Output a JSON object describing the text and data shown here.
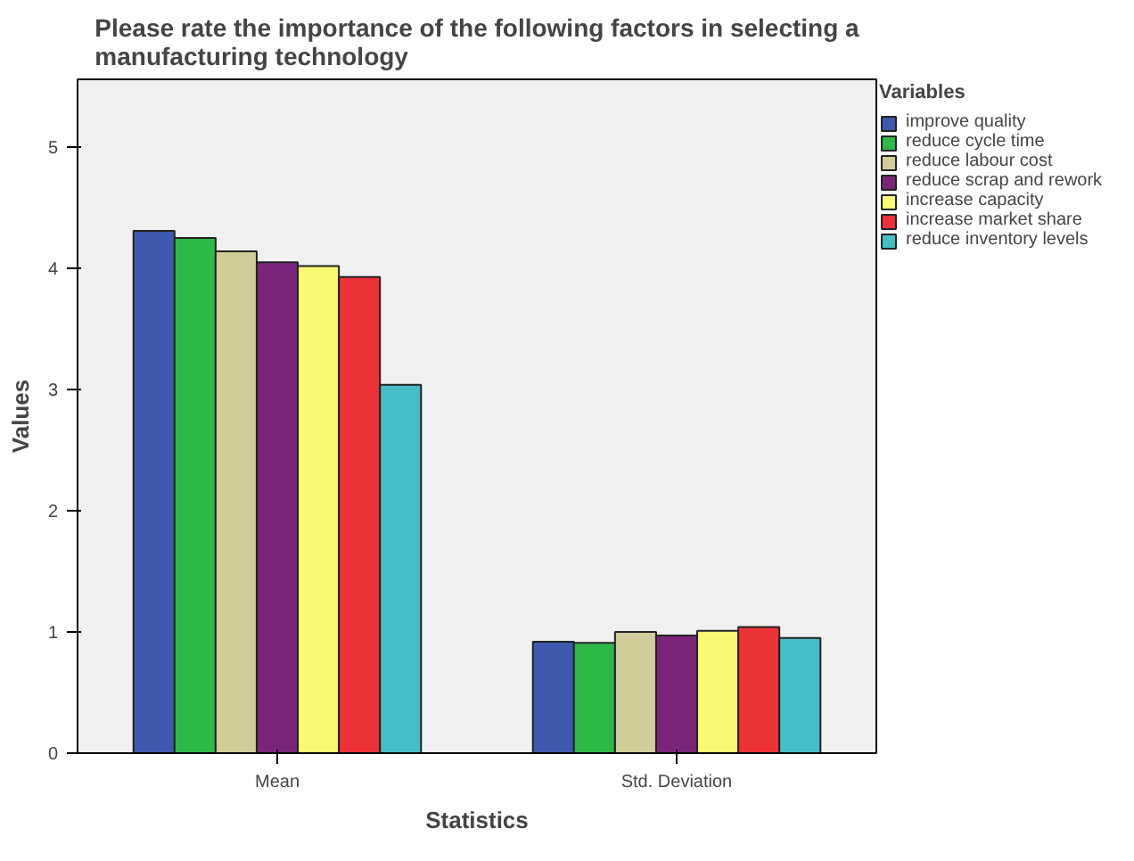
{
  "chart_data": {
    "type": "bar",
    "title": "Please rate the importance of the following factors in selecting a\nmanufacturing technology",
    "xlabel": "Statistics",
    "ylabel": "Values",
    "legend_title": "Variables",
    "categories": [
      "Mean",
      "Std. Deviation"
    ],
    "series": [
      {
        "name": "improve quality",
        "color": "#3e58ac",
        "values": [
          4.31,
          0.92
        ]
      },
      {
        "name": "reduce cycle time",
        "color": "#2eb848",
        "values": [
          4.25,
          0.91
        ]
      },
      {
        "name": "reduce labour cost",
        "color": "#d2cc9a",
        "values": [
          4.14,
          1.0
        ]
      },
      {
        "name": "reduce scrap and rework",
        "color": "#79267a",
        "values": [
          4.05,
          0.97
        ]
      },
      {
        "name": "increase capacity",
        "color": "#fbf873",
        "values": [
          4.02,
          1.01
        ]
      },
      {
        "name": "increase market share",
        "color": "#ed3237",
        "values": [
          3.93,
          1.04
        ]
      },
      {
        "name": "reduce inventory levels",
        "color": "#46bec6",
        "values": [
          3.04,
          0.95
        ]
      }
    ],
    "ylim": [
      0,
      5.56
    ],
    "yticks": [
      0,
      1,
      2,
      3,
      4,
      5
    ],
    "grid": false,
    "legend": "right"
  }
}
